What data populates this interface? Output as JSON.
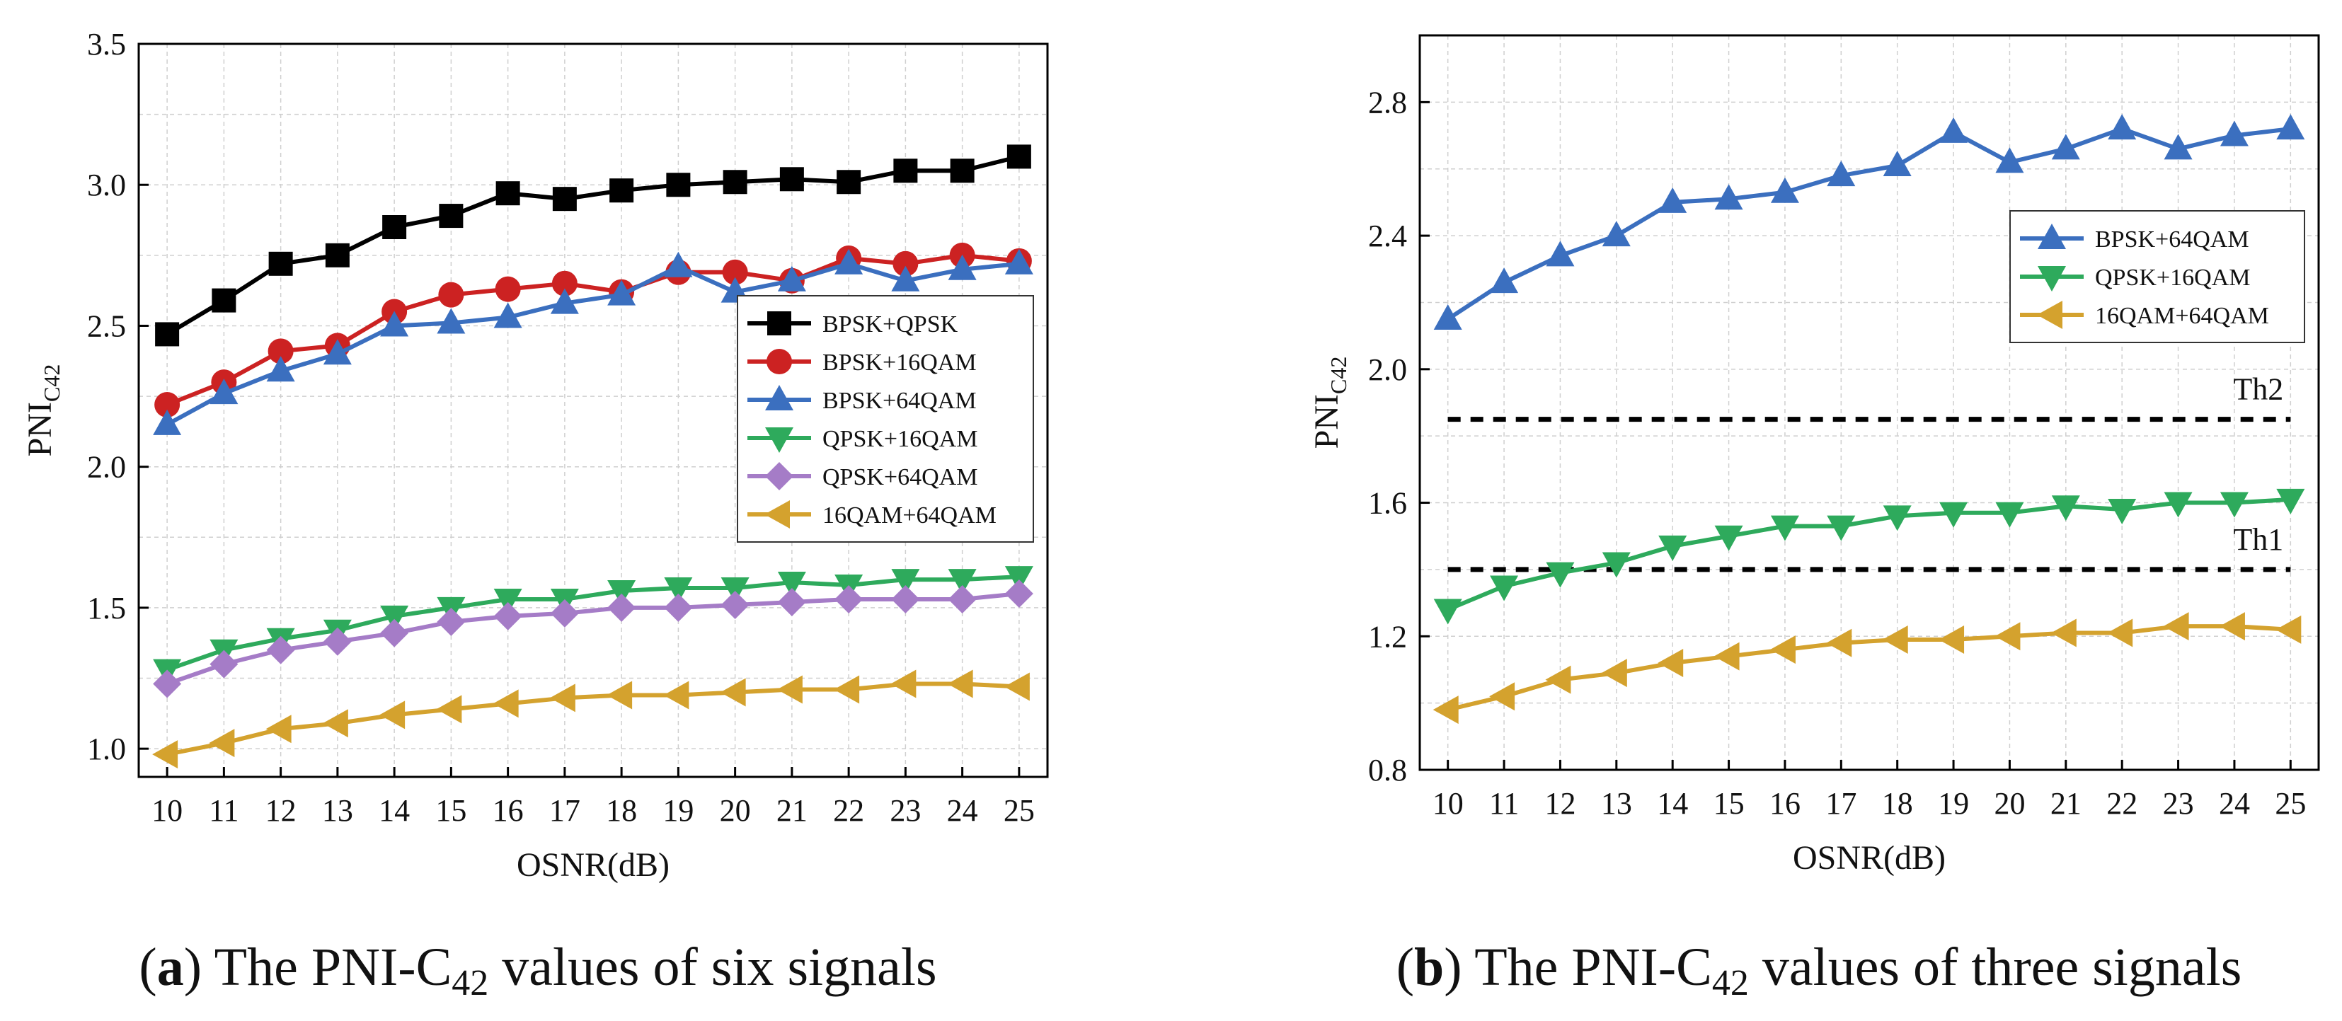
{
  "chart_data": [
    {
      "type": "line",
      "panel": "a",
      "caption": {
        "letter": "a",
        "text_before": " The PNI-C",
        "sub": "42",
        "text_after": " values of six signals"
      },
      "xlabel": "OSNR(dB)",
      "ylabel": {
        "main": "PNI",
        "sub": "C42"
      },
      "xlim": [
        9.5,
        25.5
      ],
      "ylim": [
        0.9,
        3.5
      ],
      "x_ticks": [
        10,
        11,
        12,
        13,
        14,
        15,
        16,
        17,
        18,
        19,
        20,
        21,
        22,
        23,
        24,
        25
      ],
      "y_ticks": [
        "1.0",
        "1.5",
        "2.0",
        "2.5",
        "3.0",
        "3.5"
      ],
      "grid": true,
      "legend_position": "center-right",
      "x": [
        10,
        11,
        12,
        13,
        14,
        15,
        16,
        17,
        18,
        19,
        20,
        21,
        22,
        23,
        24,
        25
      ],
      "series": [
        {
          "name": "BPSK+QPSK",
          "color": "#000000",
          "marker": "square",
          "values": [
            2.47,
            2.59,
            2.72,
            2.75,
            2.85,
            2.89,
            2.97,
            2.95,
            2.98,
            3.0,
            3.01,
            3.02,
            3.01,
            3.05,
            3.05,
            3.1
          ]
        },
        {
          "name": "BPSK+16QAM",
          "color": "#cc2222",
          "marker": "circle",
          "values": [
            2.22,
            2.3,
            2.41,
            2.43,
            2.55,
            2.61,
            2.63,
            2.65,
            2.62,
            2.69,
            2.69,
            2.66,
            2.74,
            2.72,
            2.75,
            2.73
          ]
        },
        {
          "name": "BPSK+64QAM",
          "color": "#3b6fbf",
          "marker": "triangle-up",
          "values": [
            2.15,
            2.26,
            2.34,
            2.4,
            2.5,
            2.51,
            2.53,
            2.58,
            2.61,
            2.71,
            2.62,
            2.66,
            2.72,
            2.66,
            2.7,
            2.72
          ]
        },
        {
          "name": "QPSK+16QAM",
          "color": "#2eaa5c",
          "marker": "triangle-down",
          "values": [
            1.28,
            1.35,
            1.39,
            1.42,
            1.47,
            1.5,
            1.53,
            1.53,
            1.56,
            1.57,
            1.57,
            1.59,
            1.58,
            1.6,
            1.6,
            1.61
          ]
        },
        {
          "name": "QPSK+64QAM",
          "color": "#a57cc7",
          "marker": "diamond",
          "values": [
            1.23,
            1.3,
            1.35,
            1.38,
            1.41,
            1.45,
            1.47,
            1.48,
            1.5,
            1.5,
            1.51,
            1.52,
            1.53,
            1.53,
            1.53,
            1.55
          ]
        },
        {
          "name": "16QAM+64QAM",
          "color": "#d4a22e",
          "marker": "triangle-left",
          "values": [
            0.98,
            1.02,
            1.07,
            1.09,
            1.12,
            1.14,
            1.16,
            1.18,
            1.19,
            1.19,
            1.2,
            1.21,
            1.21,
            1.23,
            1.23,
            1.22
          ]
        }
      ]
    },
    {
      "type": "line",
      "panel": "b",
      "caption": {
        "letter": "b",
        "text_before": " The PNI-C",
        "sub": "42",
        "text_after": " values of three signals"
      },
      "xlabel": "OSNR(dB)",
      "ylabel": {
        "main": "PNI",
        "sub": "C42"
      },
      "xlim": [
        9.5,
        25.5
      ],
      "ylim": [
        0.8,
        3.0
      ],
      "x_ticks": [
        10,
        11,
        12,
        13,
        14,
        15,
        16,
        17,
        18,
        19,
        20,
        21,
        22,
        23,
        24,
        25
      ],
      "y_ticks": [
        "0.8",
        "1.2",
        "1.6",
        "2.0",
        "2.4",
        "2.8"
      ],
      "grid": true,
      "legend_position": "top-right",
      "x": [
        10,
        11,
        12,
        13,
        14,
        15,
        16,
        17,
        18,
        19,
        20,
        21,
        22,
        23,
        24,
        25
      ],
      "thresholds": [
        {
          "label": "Th2",
          "value": 1.85
        },
        {
          "label": "Th1",
          "value": 1.4
        }
      ],
      "series": [
        {
          "name": "BPSK+64QAM",
          "color": "#3b6fbf",
          "marker": "triangle-up",
          "values": [
            2.15,
            2.26,
            2.34,
            2.4,
            2.5,
            2.51,
            2.53,
            2.58,
            2.61,
            2.71,
            2.62,
            2.66,
            2.72,
            2.66,
            2.7,
            2.72
          ]
        },
        {
          "name": "QPSK+16QAM",
          "color": "#2eaa5c",
          "marker": "triangle-down",
          "values": [
            1.28,
            1.35,
            1.39,
            1.42,
            1.47,
            1.5,
            1.53,
            1.53,
            1.56,
            1.57,
            1.57,
            1.59,
            1.58,
            1.6,
            1.6,
            1.61
          ]
        },
        {
          "name": "16QAM+64QAM",
          "color": "#d4a22e",
          "marker": "triangle-left",
          "values": [
            0.98,
            1.02,
            1.07,
            1.09,
            1.12,
            1.14,
            1.16,
            1.18,
            1.19,
            1.19,
            1.2,
            1.21,
            1.21,
            1.23,
            1.23,
            1.22
          ]
        }
      ]
    }
  ]
}
